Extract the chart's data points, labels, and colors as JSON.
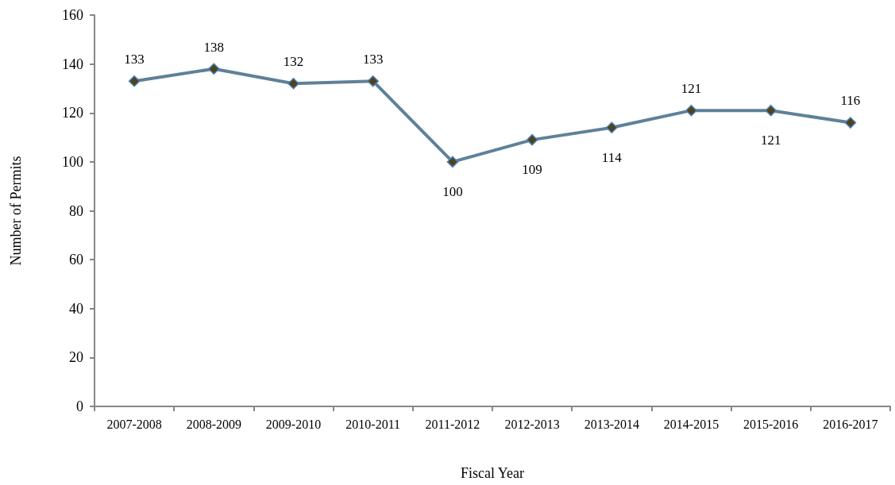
{
  "chart_data": {
    "type": "line",
    "xlabel": "Fiscal Year",
    "ylabel": "Number of Permits",
    "categories": [
      "2007-2008",
      "2008-2009",
      "2009-2010",
      "2010-2011",
      "2011-2012",
      "2012-2013",
      "2013-2014",
      "2014-2015",
      "2015-2016",
      "2016-2017"
    ],
    "series": [
      {
        "color": "#5e8199",
        "values": [
          133,
          138,
          132,
          133,
          100,
          109,
          114,
          121,
          121,
          116
        ]
      }
    ],
    "ylim": [
      0,
      160
    ],
    "yticks": [
      0,
      20,
      40,
      60,
      80,
      100,
      120,
      140,
      160
    ],
    "data_labels": true,
    "marker": "diamond",
    "line_style": "solid",
    "grid": false
  }
}
